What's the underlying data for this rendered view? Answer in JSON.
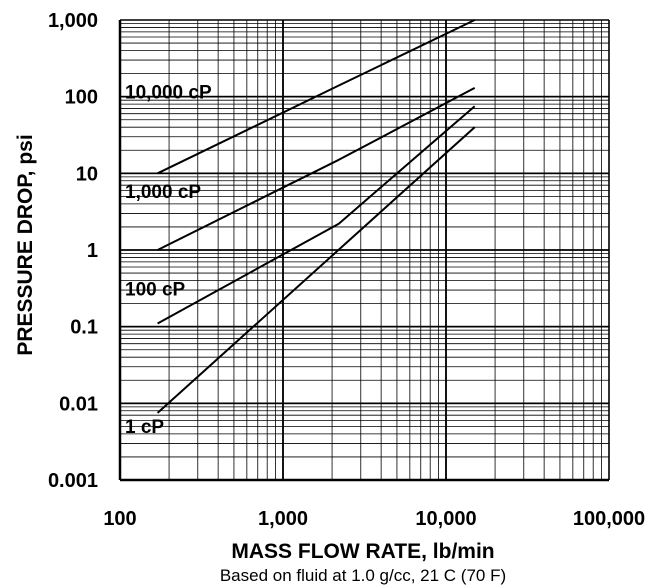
{
  "chart_data": {
    "type": "line",
    "title": "",
    "xlabel": "MASS FLOW RATE, lb/min",
    "ylabel": "PRESSURE DROP, psi",
    "note": "Based on fluid at 1.0 g/cc, 21\tC (70\tF)",
    "x_scale": "log",
    "y_scale": "log",
    "xlim": [
      100,
      100000
    ],
    "ylim": [
      0.001,
      1000
    ],
    "x_ticks": [
      100,
      1000,
      10000,
      100000
    ],
    "x_tick_labels": [
      "100",
      "1,000",
      "10,000",
      "100,000"
    ],
    "y_ticks": [
      0.001,
      0.01,
      0.1,
      1,
      10,
      100,
      1000
    ],
    "y_tick_labels": [
      "0.001",
      "0.01",
      "0.1",
      "1",
      "10",
      "100",
      "1,000"
    ],
    "grid": true,
    "legend": "none",
    "series": [
      {
        "name": "10,000 cP",
        "x": [
          170,
          2200,
          15000
        ],
        "y": [
          10,
          140,
          1000
        ]
      },
      {
        "name": "1,000 cP",
        "x": [
          170,
          2200,
          15000
        ],
        "y": [
          1,
          15,
          130
        ]
      },
      {
        "name": "100 cP",
        "x": [
          170,
          2200,
          15000
        ],
        "y": [
          0.11,
          2.2,
          75
        ]
      },
      {
        "name": "1 cP",
        "x": [
          170,
          15000
        ],
        "y": [
          0.0075,
          40
        ]
      }
    ]
  }
}
